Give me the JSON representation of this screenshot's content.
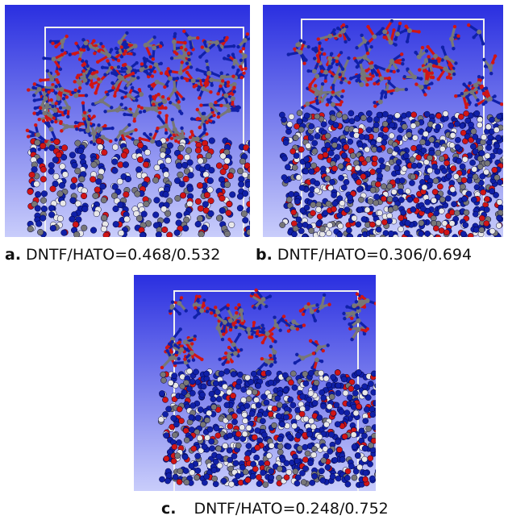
{
  "figure": {
    "panels": [
      {
        "letter": "a.",
        "text": "DNTF/HATO=0.468/0.532"
      },
      {
        "letter": "b.",
        "text": "DNTF/HATO=0.306/0.694"
      },
      {
        "letter": "c.",
        "text": "DNTF/HATO=0.248/0.752"
      }
    ],
    "colors": {
      "background_top": "#2a2fe0",
      "background_bottom": "#c9cdfb",
      "carbon": "#777777",
      "nitrogen": "#1020a8",
      "oxygen": "#d01515",
      "hydrogen": "#e8e8e8",
      "cell_box": "#f0f0f0"
    }
  }
}
